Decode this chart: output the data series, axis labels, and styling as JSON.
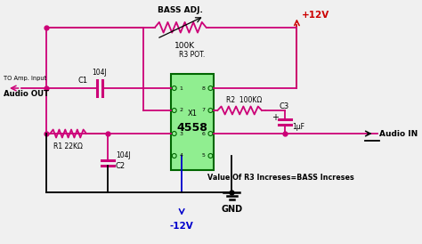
{
  "bg_color": "#f0f0f0",
  "wire_color_pink": "#cc0077",
  "wire_color_black": "#000000",
  "wire_color_blue": "#0000cc",
  "wire_color_red": "#cc0000",
  "ic_fill": "#90ee90",
  "ic_border": "#006600",
  "labels": {
    "bass_adj": "BASS ADJ.",
    "r3_label": "100K",
    "r3_name": "R3 POT.",
    "plus12v": "+12V",
    "audio_out_top": "TO Amp. Input",
    "audio_out": "Audio OUT",
    "c1_val": "104J",
    "c1_name": "C1",
    "r1_val": "R1 22KΩ",
    "c2_val": "104J",
    "c2_name": "C2",
    "ic_name": "X1",
    "ic_label": "4558",
    "r2_val": "R2  100KΩ",
    "c3_val": "1μF",
    "c3_name": "C3",
    "audio_in": "Audio IN",
    "minus12v": "-12V",
    "gnd": "GND",
    "note": "Value Of R3 Increses=BASS Increses"
  }
}
